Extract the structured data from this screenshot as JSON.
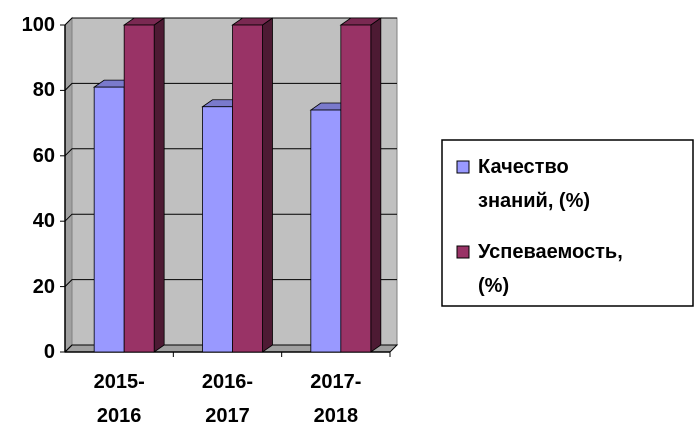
{
  "chart_data": {
    "type": "bar3d",
    "categories": [
      "2015-2016",
      "2016-2017",
      "2017-2018"
    ],
    "series": [
      {
        "name": "Качество знаний, (%)",
        "color": "#9999ff",
        "values": [
          81,
          75,
          74
        ]
      },
      {
        "name": "Успеваемость, (%)",
        "color": "#993366",
        "values": [
          100,
          100,
          100
        ]
      }
    ],
    "ylim": [
      0,
      100
    ],
    "yticks": [
      0,
      20,
      40,
      60,
      80,
      100
    ],
    "grid": true,
    "legend": "right"
  }
}
